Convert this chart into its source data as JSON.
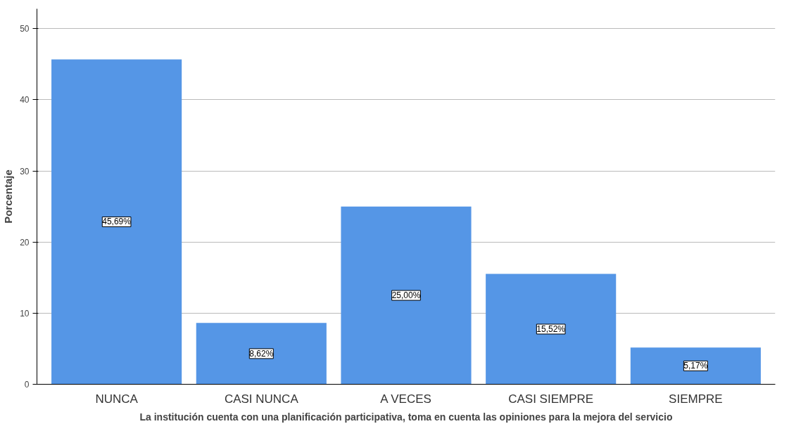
{
  "chart_data": {
    "type": "bar",
    "xlabel": "La institución cuenta con una planificación participativa, toma en cuenta las opiniones para la mejora del servicio",
    "ylabel": "Porcentaje",
    "categories": [
      "NUNCA",
      "CASI NUNCA",
      "A VECES",
      "CASI SIEMPRE",
      "SIEMPRE"
    ],
    "values": [
      45.69,
      8.62,
      25.0,
      15.52,
      5.17
    ],
    "value_labels": [
      "45,69%",
      "8,62%",
      "25,00%",
      "15,52%",
      "5,17%"
    ],
    "color": "#5596e6",
    "ylim": [
      0,
      52.8
    ],
    "yticks": [
      0,
      10,
      20,
      30,
      40,
      50
    ],
    "grid": "y"
  }
}
